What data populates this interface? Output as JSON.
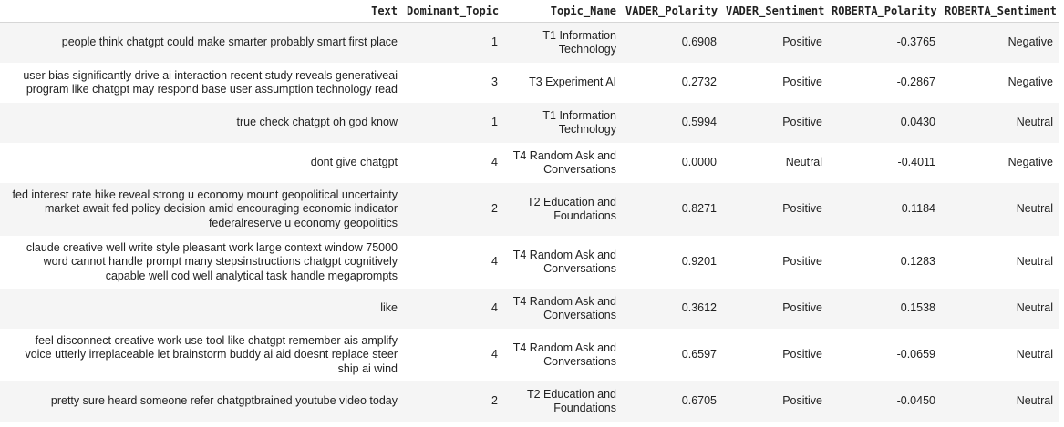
{
  "table": {
    "columns": [
      "Text",
      "Dominant_Topic",
      "Topic_Name",
      "VADER_Polarity",
      "VADER_Sentiment",
      "ROBERTA_Polarity",
      "ROBERTA_Sentiment"
    ],
    "rows": [
      {
        "text": "people think chatgpt could make smarter probably smart first place",
        "topic": "1",
        "topic_name": "T1 Information Technology",
        "vader_polarity": "0.6908",
        "vader_sentiment": "Positive",
        "roberta_polarity": "-0.3765",
        "roberta_sentiment": "Negative"
      },
      {
        "text": "user bias significantly drive ai interaction recent study reveals generativeai program like chatgpt may respond base user assumption technology read",
        "topic": "3",
        "topic_name": "T3 Experiment AI",
        "vader_polarity": "0.2732",
        "vader_sentiment": "Positive",
        "roberta_polarity": "-0.2867",
        "roberta_sentiment": "Negative"
      },
      {
        "text": "true check chatgpt oh god know",
        "topic": "1",
        "topic_name": "T1 Information Technology",
        "vader_polarity": "0.5994",
        "vader_sentiment": "Positive",
        "roberta_polarity": "0.0430",
        "roberta_sentiment": "Neutral"
      },
      {
        "text": "dont give chatgpt",
        "topic": "4",
        "topic_name": "T4 Random Ask and Conversations",
        "vader_polarity": "0.0000",
        "vader_sentiment": "Neutral",
        "roberta_polarity": "-0.4011",
        "roberta_sentiment": "Negative"
      },
      {
        "text": "fed interest rate hike reveal strong u economy mount geopolitical uncertainty market await fed policy decision amid encouraging economic indicator federalreserve u economy geopolitics",
        "topic": "2",
        "topic_name": "T2 Education and Foundations",
        "vader_polarity": "0.8271",
        "vader_sentiment": "Positive",
        "roberta_polarity": "0.1184",
        "roberta_sentiment": "Neutral"
      },
      {
        "text": "claude creative well write style pleasant work large context window 75000 word cannot handle prompt many stepsinstructions chatgpt cognitively capable well cod well analytical task handle megaprompts",
        "topic": "4",
        "topic_name": "T4 Random Ask and Conversations",
        "vader_polarity": "0.9201",
        "vader_sentiment": "Positive",
        "roberta_polarity": "0.1283",
        "roberta_sentiment": "Neutral"
      },
      {
        "text": "like",
        "topic": "4",
        "topic_name": "T4 Random Ask and Conversations",
        "vader_polarity": "0.3612",
        "vader_sentiment": "Positive",
        "roberta_polarity": "0.1538",
        "roberta_sentiment": "Neutral"
      },
      {
        "text": "feel disconnect creative work use tool like chatgpt remember ais amplify voice utterly irreplaceable let brainstorm buddy ai aid doesnt replace steer ship ai wind",
        "topic": "4",
        "topic_name": "T4 Random Ask and Conversations",
        "vader_polarity": "0.6597",
        "vader_sentiment": "Positive",
        "roberta_polarity": "-0.0659",
        "roberta_sentiment": "Neutral"
      },
      {
        "text": "pretty sure heard someone refer chatgptbrained youtube video today",
        "topic": "2",
        "topic_name": "T2 Education and Foundations",
        "vader_polarity": "0.6705",
        "vader_sentiment": "Positive",
        "roberta_polarity": "-0.0450",
        "roberta_sentiment": "Neutral"
      }
    ]
  }
}
